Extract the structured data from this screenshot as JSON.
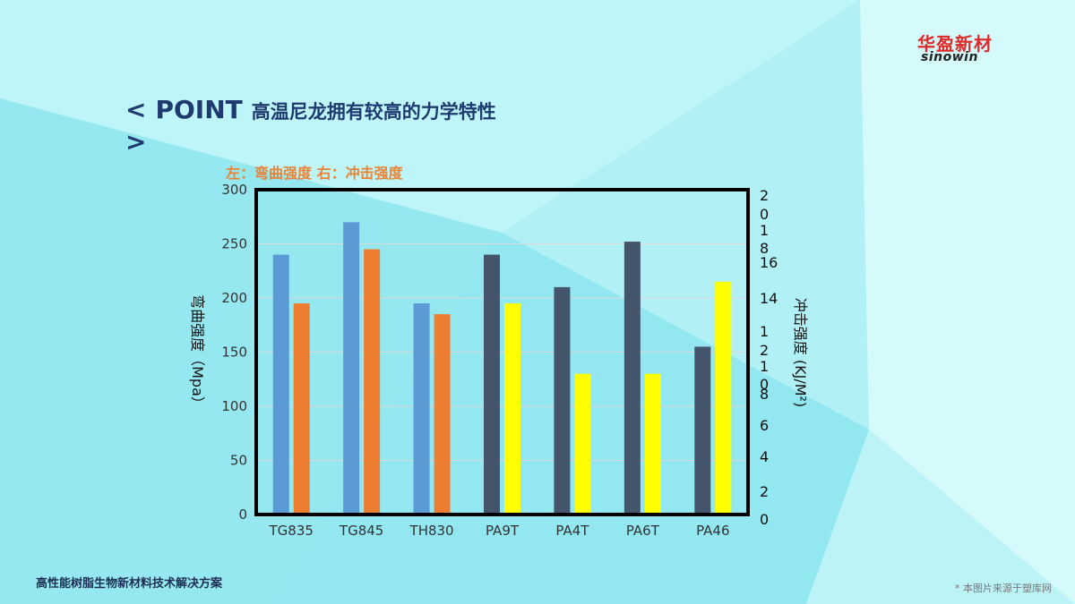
{
  "brand": {
    "cn": "华盈新材",
    "en": "sinowin"
  },
  "slide": {
    "title_prefix": "<",
    "title_word": "POINT",
    "title_text": "高温尼龙拥有较高的力学特性",
    "title_suffix": ">",
    "note": "左：弯曲强度  右：冲击强度",
    "footer_left": "高性能树脂生物新材料技术解决方案",
    "footer_right": "* 本图片来源于塑库网"
  },
  "chart_data": {
    "type": "bar",
    "categories": [
      "TG835",
      "TG845",
      "TH830",
      "PA9T",
      "PA4T",
      "PA6T",
      "PA46"
    ],
    "series": [
      {
        "axis": "left",
        "values": [
          240,
          270,
          195,
          240,
          210,
          252,
          155
        ],
        "colors": [
          "#5b9bd5",
          "#5b9bd5",
          "#5b9bd5",
          "#44546a",
          "#44546a",
          "#44546a",
          "#44546a"
        ]
      },
      {
        "axis": "right",
        "values": [
          195,
          245,
          185,
          195,
          130,
          130,
          215
        ],
        "colors": [
          "#ed7d31",
          "#ed7d31",
          "#ed7d31",
          "#ffff00",
          "#ffff00",
          "#ffff00",
          "#ffff00"
        ]
      }
    ],
    "ylabel": "弯曲强度（Mpa）",
    "ylim": [
      0,
      300
    ],
    "yticks": [
      "0",
      "50",
      "100",
      "150",
      "200",
      "250",
      "300"
    ],
    "y2label": "冲击强度 (KJ/M²)",
    "y2ticks": [
      "0",
      "2",
      "4",
      "6",
      "8",
      "10",
      "12",
      "14",
      "16",
      "18",
      "20"
    ],
    "grid": true
  }
}
